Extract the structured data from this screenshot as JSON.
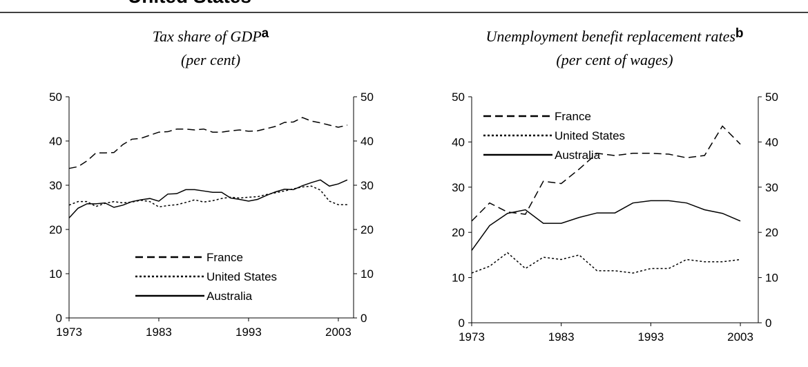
{
  "page_title": "United States",
  "chart_data": [
    {
      "type": "line",
      "title": "Tax share of GDP",
      "title_note": "a",
      "subtitle": "(per cent)",
      "x": [
        1973,
        1974,
        1975,
        1976,
        1977,
        1978,
        1979,
        1980,
        1981,
        1982,
        1983,
        1984,
        1985,
        1986,
        1987,
        1988,
        1989,
        1990,
        1991,
        1992,
        1993,
        1994,
        1995,
        1996,
        1997,
        1998,
        1999,
        2000,
        2001,
        2002,
        2003,
        2004
      ],
      "series": [
        {
          "name": "France",
          "color": "#000000",
          "dash": "dashed",
          "values": [
            33.8,
            34.2,
            35.5,
            37.3,
            37.3,
            37.4,
            39.2,
            40.4,
            40.6,
            41.3,
            42,
            42.1,
            42.7,
            42.7,
            42.5,
            42.7,
            42,
            42,
            42.3,
            42.5,
            42.2,
            42.3,
            42.8,
            43.3,
            44.2,
            44.3,
            45.3,
            44.5,
            44.1,
            43.6,
            43.1,
            43.6
          ]
        },
        {
          "name": "United States",
          "color": "#000000",
          "dash": "dotted",
          "values": [
            25.5,
            26.3,
            26.3,
            25.2,
            25.9,
            26.3,
            26,
            26.2,
            26.6,
            26.3,
            25.1,
            25.4,
            25.6,
            26.1,
            26.7,
            26.2,
            26.5,
            27,
            27.3,
            27.1,
            27.3,
            27.4,
            27.9,
            28.3,
            28.7,
            29.2,
            29.6,
            29.8,
            28.9,
            26.4,
            25.6,
            25.6
          ]
        },
        {
          "name": "Australia",
          "color": "#000000",
          "dash": "solid",
          "values": [
            22.6,
            24.8,
            25.8,
            25.8,
            26,
            25,
            25.5,
            26.3,
            26.7,
            27,
            26.4,
            28,
            28.1,
            29,
            29,
            28.7,
            28.4,
            28.4,
            27.1,
            26.8,
            26.4,
            26.8,
            27.7,
            28.5,
            29.1,
            29,
            29.9,
            30.6,
            31.2,
            29.8,
            30.3,
            31.2
          ]
        }
      ],
      "xlim": [
        1973,
        2004.7
      ],
      "xticks": [
        1973,
        1983,
        1993,
        2003
      ],
      "ylim": [
        0,
        50
      ],
      "yticks": [
        0,
        10,
        20,
        30,
        40,
        50
      ],
      "y2lim": [
        0,
        50
      ],
      "y2ticks": [
        0,
        10,
        20,
        30,
        40,
        50
      ],
      "legend": "lower center",
      "grid": false
    },
    {
      "type": "line",
      "title": "Unemployment benefit replacement rates",
      "title_note": "b",
      "subtitle": "(per cent of wages)",
      "x": [
        1973,
        1975,
        1977,
        1979,
        1981,
        1983,
        1985,
        1987,
        1989,
        1991,
        1993,
        1995,
        1997,
        1999,
        2001,
        2003
      ],
      "series": [
        {
          "name": "France",
          "color": "#000000",
          "dash": "dashed",
          "values": [
            22.5,
            26.5,
            24.5,
            24,
            31.3,
            30.8,
            34,
            37.5,
            37,
            37.5,
            37.5,
            37.3,
            36.5,
            37,
            43.5,
            39.5
          ]
        },
        {
          "name": "United States",
          "color": "#000000",
          "dash": "dotted",
          "values": [
            11,
            12.5,
            15.5,
            12,
            14.5,
            14,
            15,
            11.5,
            11.5,
            11,
            12,
            12,
            14,
            13.5,
            13.5,
            14
          ]
        },
        {
          "name": "Australia",
          "color": "#000000",
          "dash": "solid",
          "values": [
            16,
            21.5,
            24.2,
            25,
            22,
            22,
            23.3,
            24.3,
            24.3,
            26.5,
            27,
            27,
            26.5,
            25,
            24.2,
            22.5
          ]
        }
      ],
      "xlim": [
        1973,
        2005
      ],
      "xticks": [
        1973,
        1983,
        1993,
        2003
      ],
      "ylim": [
        0,
        50
      ],
      "yticks": [
        0,
        10,
        20,
        30,
        40,
        50
      ],
      "y2lim": [
        0,
        50
      ],
      "y2ticks": [
        0,
        10,
        20,
        30,
        40,
        50
      ],
      "legend": "upper left",
      "grid": false
    }
  ]
}
